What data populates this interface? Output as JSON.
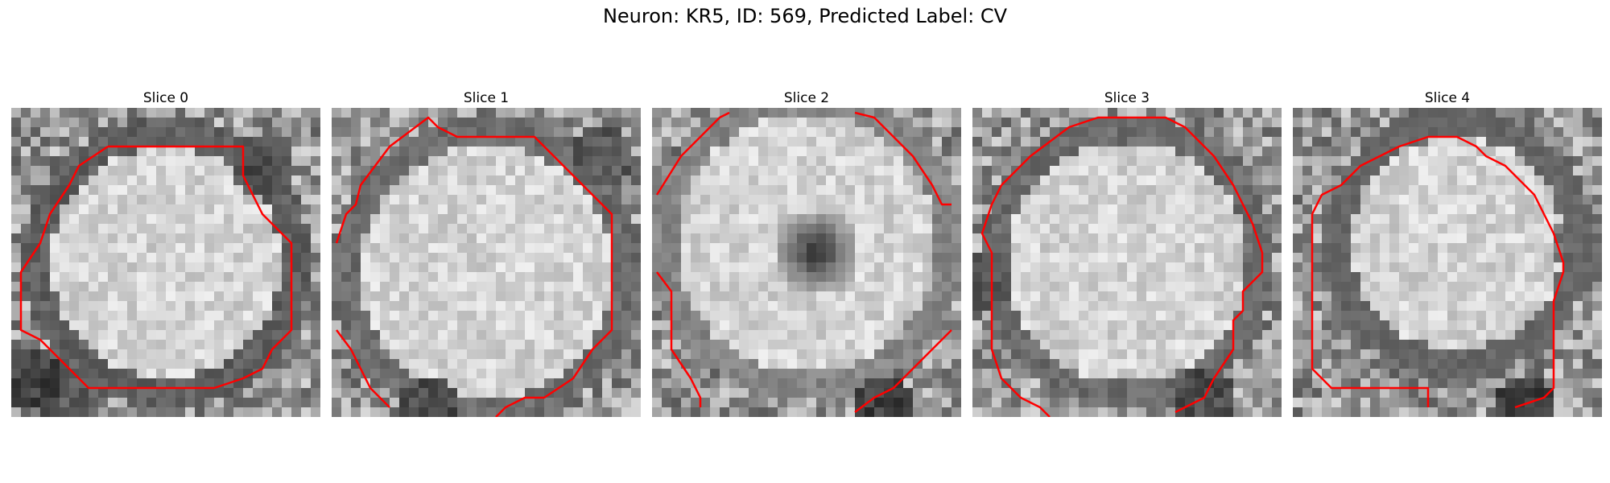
{
  "figure": {
    "title": "Neuron: KR5, ID: 569, Predicted Label: CV",
    "contour_color": "#ff0000",
    "colormap": "gray"
  },
  "slices": [
    {
      "label": "Slice 0"
    },
    {
      "label": "Slice 1"
    },
    {
      "label": "Slice 2"
    },
    {
      "label": "Slice 3"
    },
    {
      "label": "Slice 4"
    }
  ]
}
